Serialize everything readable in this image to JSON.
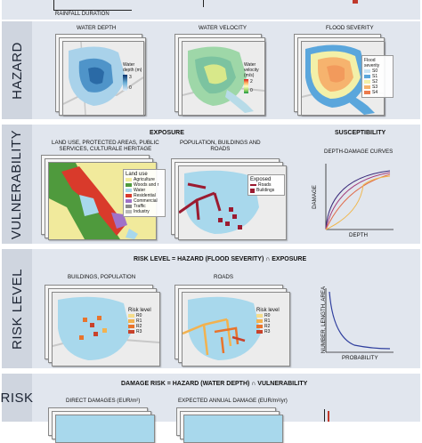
{
  "top_axis": {
    "rainfall_duration": "RAINFALL DURATION"
  },
  "hazard": {
    "label": "HAZARD",
    "water_depth": {
      "title": "WATER DEPTH",
      "legend": [
        "Water",
        "depth (m)"
      ],
      "max": "3",
      "min": "0"
    },
    "water_velocity": {
      "title": "WATER VELOCITY",
      "legend": [
        "Water",
        "velocity",
        "(m/s)"
      ],
      "max": "2",
      "min": "0"
    },
    "flood_severity": {
      "title": "FLOOD SEVERITY",
      "legend": [
        "Flood",
        "severity"
      ],
      "classes": [
        "S0",
        "S1",
        "S2",
        "S3",
        "S4"
      ]
    }
  },
  "vulnerability": {
    "label": "VULNERABILITY",
    "exposure": "EXPOSURE",
    "susceptibility": "SUSCEPTIBILITY",
    "land_use_title": [
      "LAND USE, PROTECTED AREAS, PUBLIC",
      "SERVICES, CULTURALE HERITAGE"
    ],
    "land_use_legend": {
      "title": "Land use",
      "items": [
        "Agriculture",
        "Woods and r",
        "Water",
        "Residential",
        "Commercial",
        "Traffic",
        "Industry"
      ]
    },
    "population_title": [
      "POPULATION, BUILDINGS AND",
      "ROADS"
    ],
    "exposed_legend": {
      "title": "Exposed",
      "items": [
        "Roads",
        "Buildings"
      ]
    },
    "curves_title": "DEPTH-DAMAGE CURVES",
    "curves_y": "DAMAGE",
    "curves_x": "DEPTH"
  },
  "risk_level": {
    "label": "RISK LEVEL",
    "formula": "RISK LEVEL = HAZARD (FLOOD SEVERITY) ∩ EXPOSURE",
    "buildings_title": "BUILDINGS, POPULATION",
    "roads_title": "ROADS",
    "legend": {
      "title": "Risk level",
      "items": [
        "R0",
        "R1",
        "R2",
        "R3"
      ]
    },
    "curve_y": "NUMBER, LENGTH, AREA",
    "curve_x": "PROBABILITY"
  },
  "risk": {
    "label": "RISK",
    "formula": "DAMAGE RISK = HAZARD (WATER DEPTH) ∩ VULNERABILITY",
    "direct": "DIRECT DAMAGES (EUR/m²)",
    "annual": "EXPECTED ANNUAL DAMAGE (EUR/m²/yr)"
  },
  "colors": {
    "severity": [
      "#c9e3f3",
      "#5aa6dc",
      "#f3f0a8",
      "#f6b36e",
      "#ec7a4c"
    ],
    "land_use": [
      "#f1ea9c",
      "#4f9a3d",
      "#a8d8ec",
      "#d93a2b",
      "#a072c8",
      "#8a8a8a",
      "#b9b9b9"
    ],
    "risk": [
      "#f5dd8a",
      "#f2b24f",
      "#e8742c",
      "#c9422a"
    ],
    "curves": [
      "#3b2a7a",
      "#a23c7c",
      "#e06b4b",
      "#f0b64a"
    ]
  }
}
